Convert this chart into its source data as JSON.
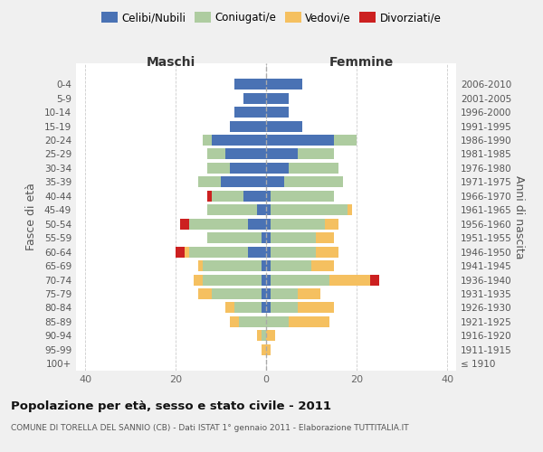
{
  "age_groups": [
    "100+",
    "95-99",
    "90-94",
    "85-89",
    "80-84",
    "75-79",
    "70-74",
    "65-69",
    "60-64",
    "55-59",
    "50-54",
    "45-49",
    "40-44",
    "35-39",
    "30-34",
    "25-29",
    "20-24",
    "15-19",
    "10-14",
    "5-9",
    "0-4"
  ],
  "birth_years": [
    "≤ 1910",
    "1911-1915",
    "1916-1920",
    "1921-1925",
    "1926-1930",
    "1931-1935",
    "1936-1940",
    "1941-1945",
    "1946-1950",
    "1951-1955",
    "1956-1960",
    "1961-1965",
    "1966-1970",
    "1971-1975",
    "1976-1980",
    "1981-1985",
    "1986-1990",
    "1991-1995",
    "1996-2000",
    "2001-2005",
    "2006-2010"
  ],
  "maschi": {
    "celibi": [
      0,
      0,
      0,
      0,
      1,
      1,
      1,
      1,
      4,
      1,
      4,
      2,
      5,
      10,
      8,
      9,
      12,
      8,
      7,
      5,
      7
    ],
    "coniugati": [
      0,
      0,
      1,
      6,
      6,
      11,
      13,
      13,
      13,
      12,
      13,
      11,
      7,
      5,
      5,
      4,
      2,
      0,
      0,
      0,
      0
    ],
    "vedovi": [
      0,
      1,
      1,
      2,
      2,
      3,
      2,
      1,
      1,
      0,
      0,
      0,
      0,
      0,
      0,
      0,
      0,
      0,
      0,
      0,
      0
    ],
    "divorziati": [
      0,
      0,
      0,
      0,
      0,
      0,
      0,
      0,
      2,
      0,
      2,
      0,
      1,
      0,
      0,
      0,
      0,
      0,
      0,
      0,
      0
    ]
  },
  "femmine": {
    "nubili": [
      0,
      0,
      0,
      0,
      1,
      1,
      1,
      1,
      1,
      1,
      1,
      1,
      1,
      4,
      5,
      7,
      15,
      8,
      5,
      5,
      8
    ],
    "coniugate": [
      0,
      0,
      0,
      5,
      6,
      6,
      13,
      9,
      10,
      10,
      12,
      17,
      14,
      13,
      11,
      8,
      5,
      0,
      0,
      0,
      0
    ],
    "vedove": [
      0,
      1,
      2,
      9,
      8,
      5,
      9,
      5,
      5,
      4,
      3,
      1,
      0,
      0,
      0,
      0,
      0,
      0,
      0,
      0,
      0
    ],
    "divorziate": [
      0,
      0,
      0,
      0,
      0,
      0,
      2,
      0,
      0,
      0,
      0,
      0,
      0,
      0,
      0,
      0,
      0,
      0,
      0,
      0,
      0
    ]
  },
  "color_celibi": "#4A72B4",
  "color_coniugati": "#AECCA0",
  "color_vedovi": "#F5C060",
  "color_divorziati": "#CC2020",
  "xlim": 42,
  "title": "Popolazione per età, sesso e stato civile - 2011",
  "subtitle": "COMUNE DI TORELLA DEL SANNIO (CB) - Dati ISTAT 1° gennaio 2011 - Elaborazione TUTTITALIA.IT",
  "xlabel_left": "Maschi",
  "xlabel_right": "Femmine",
  "ylabel_left": "Fasce di età",
  "ylabel_right": "Anni di nascita",
  "bg_color": "#f0f0f0",
  "plot_bg": "#ffffff"
}
